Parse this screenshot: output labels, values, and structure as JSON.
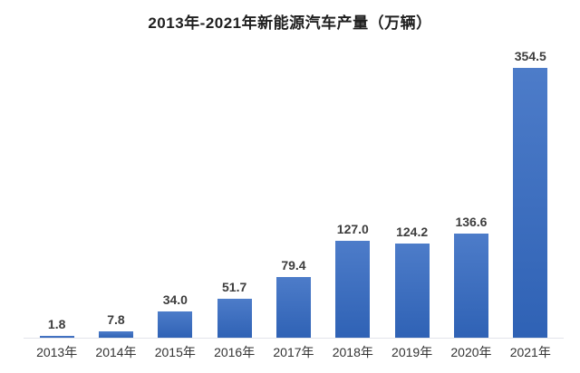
{
  "chart_data": {
    "type": "bar",
    "title": "2013年-2021年新能源汽车产量（万辆）",
    "categories": [
      "2013年",
      "2014年",
      "2015年",
      "2016年",
      "2017年",
      "2018年",
      "2019年",
      "2020年",
      "2021年"
    ],
    "values": [
      1.8,
      7.8,
      34.0,
      51.7,
      79.4,
      127.0,
      124.2,
      136.6,
      354.5
    ],
    "value_labels": [
      "1.8",
      "7.8",
      "34.0",
      "51.7",
      "79.4",
      "127.0",
      "124.2",
      "136.6",
      "354.5"
    ],
    "xlabel": "",
    "ylabel": "",
    "ylim": [
      0,
      380
    ],
    "grid": false,
    "legend_position": "none",
    "value_label_position": "above-bars",
    "colors": {
      "bar_gradient_top": "#4d7cc9",
      "bar_gradient_bottom": "#2f62b5",
      "title_text": "#1f1f1f",
      "value_label_text": "#3d3d3d",
      "axis_label_text": "#333333",
      "axis_line": "#e2e4ea",
      "background": "#ffffff"
    }
  }
}
